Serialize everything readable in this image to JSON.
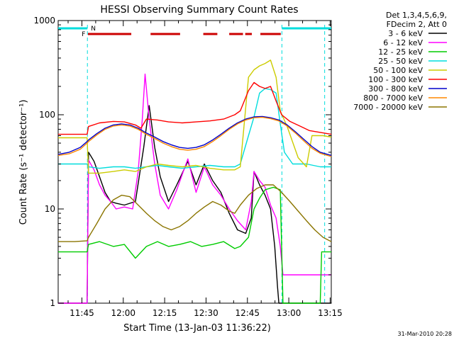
{
  "chart_data": {
    "type": "line",
    "title": "HESSI Observing Summary Count Rates",
    "xlabel": "Start Time (13-Jan-03 11:36:22)",
    "ylabel": "Count Rate (s⁻¹ detector⁻¹)",
    "x_unit": "minutes after 11:36:22",
    "xlim": [
      0,
      99
    ],
    "ylim": [
      1,
      1000
    ],
    "y_scale": "log",
    "grid": false,
    "legend_position": "top-right outside plot",
    "x_ticks": [
      {
        "t": 8.6,
        "label": "11:45"
      },
      {
        "t": 23.6,
        "label": "12:00"
      },
      {
        "t": 38.6,
        "label": "12:15"
      },
      {
        "t": 53.6,
        "label": "12:30"
      },
      {
        "t": 68.6,
        "label": "12:45"
      },
      {
        "t": 83.6,
        "label": "13:00"
      },
      {
        "t": 98.6,
        "label": "13:15"
      }
    ],
    "y_ticks": [
      {
        "v": 1,
        "label": "1"
      },
      {
        "v": 10,
        "label": "10"
      },
      {
        "v": 100,
        "label": "100"
      },
      {
        "v": 1000,
        "label": "1000"
      }
    ],
    "legend_header": [
      "Det 1,3,4,5,6,9,",
      "FDecim 2, Att 0"
    ],
    "series": [
      {
        "name": "3 - 6 keV",
        "color": "#000000",
        "points": [
          [
            0,
            1
          ],
          [
            10.5,
            1
          ],
          [
            11,
            40
          ],
          [
            13,
            32
          ],
          [
            15,
            22
          ],
          [
            17,
            15
          ],
          [
            19,
            12
          ],
          [
            21,
            11.5
          ],
          [
            24,
            11
          ],
          [
            28,
            12
          ],
          [
            31,
            45
          ],
          [
            33,
            125
          ],
          [
            35,
            45
          ],
          [
            37,
            22
          ],
          [
            40,
            12
          ],
          [
            43,
            18
          ],
          [
            47,
            32
          ],
          [
            50,
            18
          ],
          [
            53,
            30
          ],
          [
            56,
            20
          ],
          [
            59,
            15
          ],
          [
            62,
            9
          ],
          [
            65,
            6
          ],
          [
            68,
            5.5
          ],
          [
            70,
            8
          ],
          [
            71,
            25
          ],
          [
            73,
            18
          ],
          [
            75,
            14
          ],
          [
            77,
            10
          ],
          [
            78.5,
            4
          ],
          [
            79.5,
            1.5
          ],
          [
            80,
            1
          ],
          [
            99,
            1
          ]
        ]
      },
      {
        "name": "6 - 12 keV",
        "color": "#ff00ff",
        "points": [
          [
            0,
            1
          ],
          [
            10.5,
            1
          ],
          [
            11,
            33
          ],
          [
            13,
            26
          ],
          [
            15,
            18
          ],
          [
            17,
            14
          ],
          [
            19,
            12
          ],
          [
            21,
            10
          ],
          [
            24,
            10.5
          ],
          [
            27,
            10
          ],
          [
            29,
            25
          ],
          [
            30.5,
            90
          ],
          [
            31.5,
            270
          ],
          [
            33,
            90
          ],
          [
            35,
            30
          ],
          [
            37,
            14
          ],
          [
            40,
            10
          ],
          [
            43,
            16
          ],
          [
            47,
            34
          ],
          [
            50,
            15
          ],
          [
            53,
            28
          ],
          [
            56,
            18
          ],
          [
            59,
            14
          ],
          [
            62,
            10
          ],
          [
            65,
            7.5
          ],
          [
            68,
            6
          ],
          [
            70,
            12
          ],
          [
            71,
            25
          ],
          [
            73,
            20
          ],
          [
            75,
            17
          ],
          [
            77,
            11
          ],
          [
            79,
            8
          ],
          [
            80.5,
            4
          ],
          [
            81.5,
            2
          ],
          [
            99,
            2
          ]
        ]
      },
      {
        "name": "12 - 25 keV",
        "color": "#00cc00",
        "points": [
          [
            0,
            3.5
          ],
          [
            10.5,
            3.5
          ],
          [
            11,
            4.2
          ],
          [
            15,
            4.5
          ],
          [
            20,
            4
          ],
          [
            24,
            4.2
          ],
          [
            28,
            3
          ],
          [
            32,
            4
          ],
          [
            36,
            4.5
          ],
          [
            40,
            4
          ],
          [
            44,
            4.2
          ],
          [
            48,
            4.5
          ],
          [
            52,
            4
          ],
          [
            56,
            4.2
          ],
          [
            60,
            4.5
          ],
          [
            64,
            3.8
          ],
          [
            66,
            4
          ],
          [
            69,
            5
          ],
          [
            71,
            10
          ],
          [
            73,
            13
          ],
          [
            75,
            16
          ],
          [
            78,
            17
          ],
          [
            80.5,
            16
          ],
          [
            81.5,
            1
          ],
          [
            95,
            1
          ],
          [
            95.5,
            3.5
          ],
          [
            99,
            3.5
          ]
        ]
      },
      {
        "name": "25 - 50 keV",
        "color": "#00dddd",
        "points": [
          [
            0,
            30
          ],
          [
            10.5,
            30
          ],
          [
            11,
            28
          ],
          [
            15,
            27
          ],
          [
            20,
            28
          ],
          [
            24,
            28
          ],
          [
            28,
            27
          ],
          [
            32,
            28
          ],
          [
            36,
            29
          ],
          [
            40,
            28
          ],
          [
            45,
            27
          ],
          [
            50,
            28
          ],
          [
            55,
            29
          ],
          [
            60,
            28
          ],
          [
            64,
            28
          ],
          [
            66,
            30
          ],
          [
            69,
            60
          ],
          [
            71,
            95
          ],
          [
            73,
            170
          ],
          [
            75,
            190
          ],
          [
            77,
            185
          ],
          [
            79,
            170
          ],
          [
            80.5,
            80
          ],
          [
            82,
            40
          ],
          [
            85,
            30
          ],
          [
            90,
            30
          ],
          [
            95,
            28
          ],
          [
            99,
            28
          ]
        ]
      },
      {
        "name": "50 - 100 keV",
        "color": "#cccc00",
        "points": [
          [
            0,
            57
          ],
          [
            10.5,
            57
          ],
          [
            11,
            24
          ],
          [
            15,
            24
          ],
          [
            20,
            25
          ],
          [
            24,
            26
          ],
          [
            28,
            25
          ],
          [
            32,
            28
          ],
          [
            36,
            30
          ],
          [
            40,
            29
          ],
          [
            45,
            28
          ],
          [
            50,
            29
          ],
          [
            55,
            27
          ],
          [
            60,
            26
          ],
          [
            64,
            26
          ],
          [
            66,
            28
          ],
          [
            69,
            250
          ],
          [
            71,
            300
          ],
          [
            73,
            330
          ],
          [
            75,
            350
          ],
          [
            77,
            380
          ],
          [
            79,
            250
          ],
          [
            80.5,
            110
          ],
          [
            83,
            75
          ],
          [
            87,
            35
          ],
          [
            90,
            28
          ],
          [
            92,
            60
          ],
          [
            96,
            60
          ],
          [
            99,
            58
          ]
        ]
      },
      {
        "name": "100 - 300 keV",
        "color": "#ff0000",
        "points": [
          [
            0,
            62
          ],
          [
            10.5,
            62
          ],
          [
            11,
            75
          ],
          [
            15,
            82
          ],
          [
            20,
            85
          ],
          [
            24,
            84
          ],
          [
            28,
            78
          ],
          [
            30,
            72
          ],
          [
            32,
            90
          ],
          [
            36,
            88
          ],
          [
            40,
            84
          ],
          [
            45,
            82
          ],
          [
            50,
            84
          ],
          [
            55,
            86
          ],
          [
            60,
            90
          ],
          [
            64,
            100
          ],
          [
            66,
            110
          ],
          [
            69,
            180
          ],
          [
            71,
            220
          ],
          [
            73,
            200
          ],
          [
            75,
            190
          ],
          [
            77,
            200
          ],
          [
            79,
            140
          ],
          [
            81,
            100
          ],
          [
            84,
            85
          ],
          [
            88,
            75
          ],
          [
            91,
            68
          ],
          [
            95,
            65
          ],
          [
            99,
            62
          ]
        ]
      },
      {
        "name": "300 - 800 keV",
        "color": "#0000cc",
        "points": [
          [
            0,
            38
          ],
          [
            4,
            40
          ],
          [
            8,
            45
          ],
          [
            10.5,
            52
          ],
          [
            11,
            54
          ],
          [
            14,
            63
          ],
          [
            17,
            72
          ],
          [
            20,
            78
          ],
          [
            23,
            80
          ],
          [
            26,
            78
          ],
          [
            29,
            72
          ],
          [
            32,
            64
          ],
          [
            35,
            58
          ],
          [
            38,
            52
          ],
          [
            41,
            48
          ],
          [
            44,
            45
          ],
          [
            47,
            44
          ],
          [
            50,
            45
          ],
          [
            53,
            48
          ],
          [
            56,
            54
          ],
          [
            59,
            62
          ],
          [
            62,
            72
          ],
          [
            65,
            82
          ],
          [
            68,
            90
          ],
          [
            71,
            95
          ],
          [
            74,
            96
          ],
          [
            77,
            93
          ],
          [
            80,
            88
          ],
          [
            83,
            78
          ],
          [
            86,
            66
          ],
          [
            89,
            55
          ],
          [
            92,
            46
          ],
          [
            95,
            40
          ],
          [
            99,
            37
          ]
        ]
      },
      {
        "name": "800 - 7000 keV",
        "color": "#ff8800",
        "points": [
          [
            0,
            37
          ],
          [
            4,
            38.5
          ],
          [
            8,
            43
          ],
          [
            10.5,
            50
          ],
          [
            11,
            52
          ],
          [
            14,
            61
          ],
          [
            17,
            70
          ],
          [
            20,
            76
          ],
          [
            23,
            78
          ],
          [
            26,
            76
          ],
          [
            29,
            70
          ],
          [
            32,
            62
          ],
          [
            35,
            56
          ],
          [
            38,
            50
          ],
          [
            41,
            46
          ],
          [
            44,
            43
          ],
          [
            47,
            42
          ],
          [
            50,
            43
          ],
          [
            53,
            46
          ],
          [
            56,
            52
          ],
          [
            59,
            60
          ],
          [
            62,
            70
          ],
          [
            65,
            80
          ],
          [
            68,
            88
          ],
          [
            71,
            93
          ],
          [
            74,
            94
          ],
          [
            77,
            91
          ],
          [
            80,
            86
          ],
          [
            83,
            76
          ],
          [
            86,
            64
          ],
          [
            89,
            53
          ],
          [
            92,
            44
          ],
          [
            95,
            39
          ],
          [
            99,
            36
          ]
        ]
      },
      {
        "name": "7000 - 20000 keV",
        "color": "#8b7500",
        "points": [
          [
            0,
            4.5
          ],
          [
            6,
            4.5
          ],
          [
            10.5,
            4.6
          ],
          [
            11,
            5
          ],
          [
            14,
            7
          ],
          [
            17,
            10
          ],
          [
            20,
            12.5
          ],
          [
            23,
            14
          ],
          [
            26,
            13.5
          ],
          [
            29,
            11
          ],
          [
            32,
            9
          ],
          [
            35,
            7.5
          ],
          [
            38,
            6.5
          ],
          [
            41,
            6
          ],
          [
            44,
            6.5
          ],
          [
            47,
            7.5
          ],
          [
            50,
            9
          ],
          [
            53,
            10.5
          ],
          [
            56,
            12
          ],
          [
            59,
            11
          ],
          [
            62,
            9.5
          ],
          [
            64,
            9
          ],
          [
            66,
            11
          ],
          [
            69,
            14
          ],
          [
            72,
            16.5
          ],
          [
            75,
            18
          ],
          [
            78,
            18
          ],
          [
            81,
            15
          ],
          [
            84,
            12
          ],
          [
            87,
            9.5
          ],
          [
            90,
            7.5
          ],
          [
            93,
            6
          ],
          [
            96,
            5
          ],
          [
            99,
            4.5
          ]
        ]
      }
    ],
    "markers": [
      {
        "label": "F",
        "color": "#cc0000"
      },
      {
        "label": "N",
        "color": "#00dddd"
      }
    ]
  },
  "footer": {
    "timestamp": "31-Mar-2010 20:28"
  }
}
